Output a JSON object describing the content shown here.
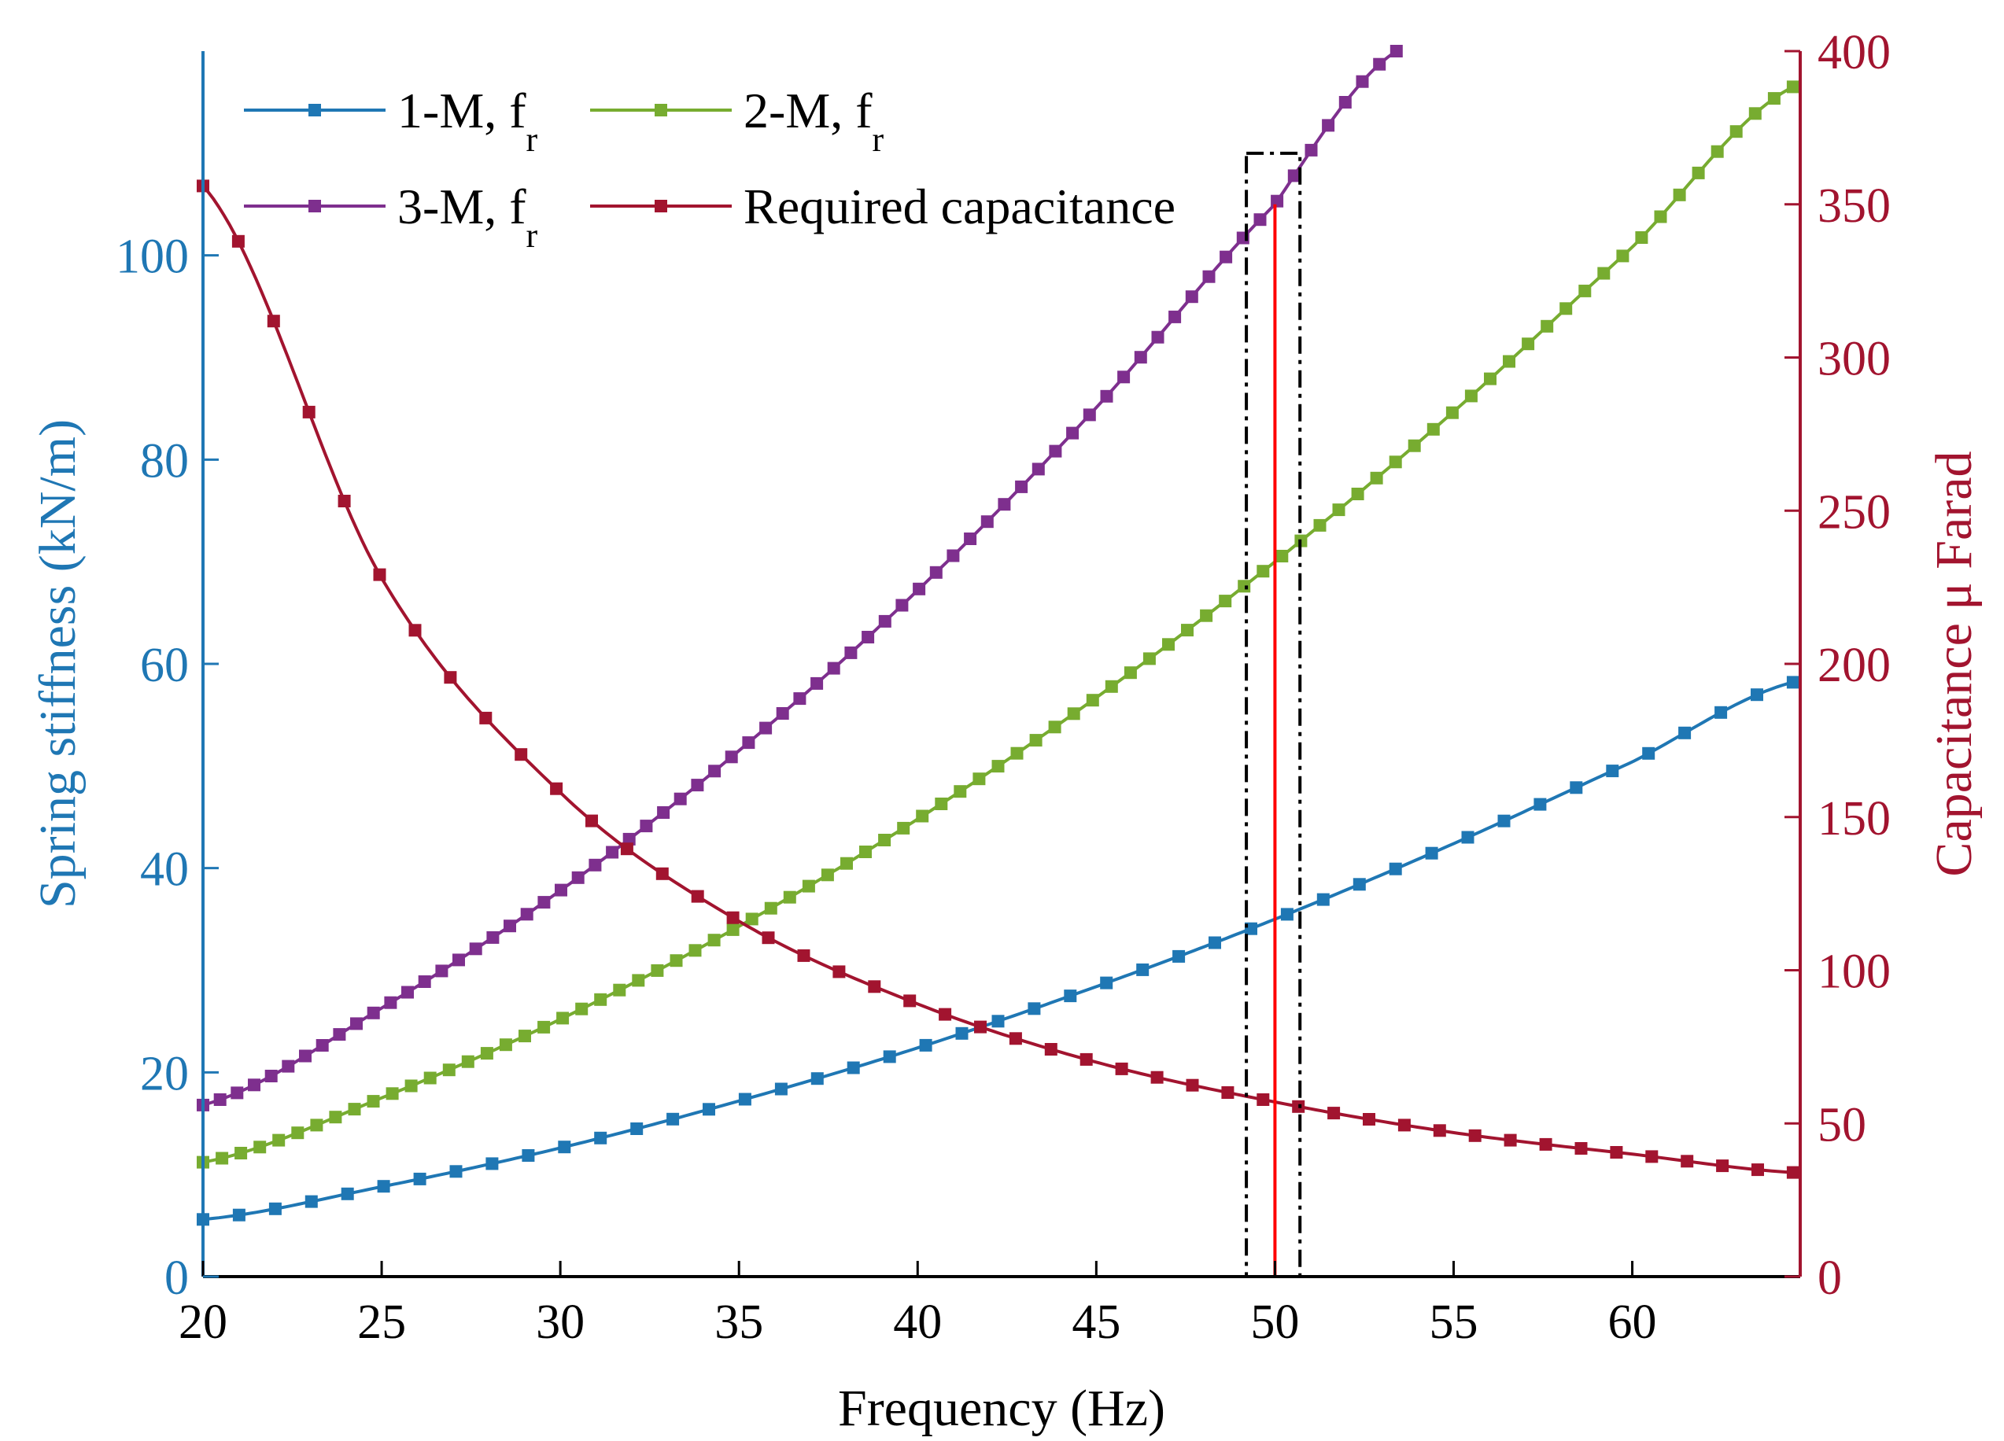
{
  "chart_data": {
    "type": "line",
    "xlabel": "Frequency (Hz)",
    "ylabel_left": "Spring stiffness (kN/m)",
    "ylabel_right": "Capacitance μ Farad",
    "xlim": [
      20,
      64.7
    ],
    "ylim_left": [
      0,
      120
    ],
    "ylim_right": [
      0,
      400
    ],
    "xticks": [
      20,
      25,
      30,
      35,
      40,
      45,
      50,
      55,
      60
    ],
    "yticks_left": [
      0,
      20,
      40,
      60,
      80,
      100
    ],
    "yticks_right": [
      0,
      50,
      100,
      150,
      200,
      250,
      300,
      350,
      400
    ],
    "grid": false,
    "legend_position": "top-left",
    "series": [
      {
        "name": "1-M, f",
        "name_subscript": "r",
        "axis": "left",
        "color": "#1f77b4",
        "x": [
          20,
          25,
          30,
          35,
          40,
          45,
          50,
          55,
          60,
          64.5
        ],
        "y": [
          5.6,
          8.8,
          12.6,
          17.2,
          22.4,
          28.4,
          35.0,
          42.4,
          50.4,
          58.2
        ]
      },
      {
        "name": "2-M, f",
        "name_subscript": "r",
        "axis": "left",
        "color": "#77ac30",
        "x": [
          20,
          25,
          30,
          35,
          40,
          45,
          50,
          55,
          60,
          64.5
        ],
        "y": [
          11.2,
          17.5,
          25.2,
          34.3,
          44.8,
          56.7,
          70.0,
          84.7,
          100.8,
          116.5
        ]
      },
      {
        "name": "3-M, f",
        "name_subscript": "r",
        "axis": "left",
        "color": "#7e2f8e",
        "x": [
          20,
          25,
          30,
          35,
          40,
          45,
          50,
          53.4
        ],
        "y": [
          16.8,
          26.3,
          37.8,
          51.5,
          67.2,
          85.1,
          105.0,
          120
        ]
      },
      {
        "name": "Required capacitance",
        "axis": "right",
        "color": "#a2142f",
        "x": [
          20,
          25,
          30,
          35,
          40,
          45,
          50,
          55,
          60,
          64.5
        ],
        "y": [
          356,
          228,
          158,
          116,
          89,
          70,
          57,
          47,
          40,
          34
        ]
      }
    ],
    "annotations": {
      "highlight_box": {
        "x_range": [
          49.2,
          50.7
        ],
        "y_range_left": [
          0,
          110
        ],
        "style": "dash-dot",
        "color": "#000000"
      },
      "marker_line": {
        "x": 50,
        "y_top_left": 105,
        "color": "#ff0000"
      }
    }
  }
}
